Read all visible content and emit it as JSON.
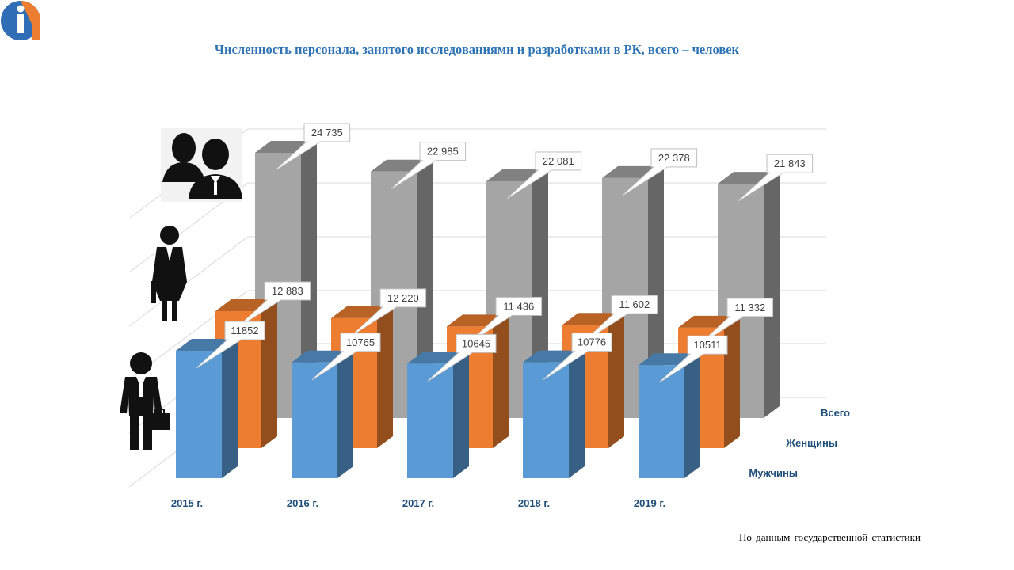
{
  "title": "Численность персонала, занятого исследованиями и разработками в РК, всего – человек",
  "source_note": "По данным государственной статистики",
  "chart_data": {
    "type": "bar",
    "style": "3d-clustered-column",
    "categories": [
      "2015 г.",
      "2016 г.",
      "2017 г.",
      "2018 г.",
      "2019 г."
    ],
    "series": [
      {
        "name": "Мужчины",
        "values": [
          11852,
          10765,
          10645,
          10776,
          10511
        ],
        "labels": [
          "11852",
          "10765",
          "10645",
          "10776",
          "10511"
        ],
        "color": "#5b9bd5"
      },
      {
        "name": "Женщины",
        "values": [
          12883,
          12220,
          11436,
          11602,
          11332
        ],
        "labels": [
          "12 883",
          "12 220",
          "11 436",
          "11 602",
          "11 332"
        ],
        "color": "#ed7d31"
      },
      {
        "name": "Всего",
        "values": [
          24735,
          22985,
          22081,
          22378,
          21843
        ],
        "labels": [
          "24 735",
          "22 985",
          "22 081",
          "22 378",
          "21 843"
        ],
        "color": "#a5a5a5"
      }
    ],
    "series_labels_color": "#1f4e79",
    "grid": true,
    "legend": "none"
  }
}
